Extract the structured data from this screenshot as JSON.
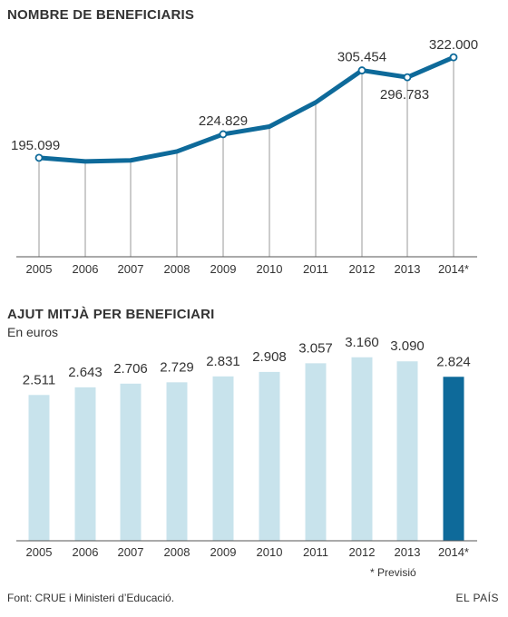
{
  "chart_data": [
    {
      "type": "line",
      "title": "NOMBRE DE BENEFICIARIS",
      "categories": [
        "2005",
        "2006",
        "2007",
        "2008",
        "2009",
        "2010",
        "2011",
        "2012",
        "2013",
        "2014*"
      ],
      "values": [
        195099,
        190500,
        191800,
        203000,
        224829,
        234500,
        265000,
        305454,
        296783,
        322000
      ],
      "data_labels": {
        "0": "195.099",
        "4": "224.829",
        "7": "305.454",
        "8": "296.783",
        "9": "322.000"
      },
      "ylim": [
        70000,
        360000
      ],
      "grid": false,
      "color": "#0e6a9a"
    },
    {
      "type": "bar",
      "title": "AJUT MITJÀ PER BENEFICIARI",
      "subtitle": "En euros",
      "categories": [
        "2005",
        "2006",
        "2007",
        "2008",
        "2009",
        "2010",
        "2011",
        "2012",
        "2013",
        "2014*"
      ],
      "values": [
        2511,
        2643,
        2706,
        2729,
        2831,
        2908,
        3057,
        3160,
        3090,
        2824
      ],
      "data_labels": [
        "2.511",
        "2.643",
        "2.706",
        "2.729",
        "2.831",
        "2.908",
        "3.057",
        "3.160",
        "3.090",
        "2.824"
      ],
      "ylim": [
        0,
        3250
      ],
      "colors": {
        "normal": "#c8e3ec",
        "forecast": "#0e6a9a"
      }
    }
  ],
  "footnote": "* Previsió",
  "source": "Font: CRUE i Ministeri d’Educació.",
  "brand": "EL PAÍS"
}
